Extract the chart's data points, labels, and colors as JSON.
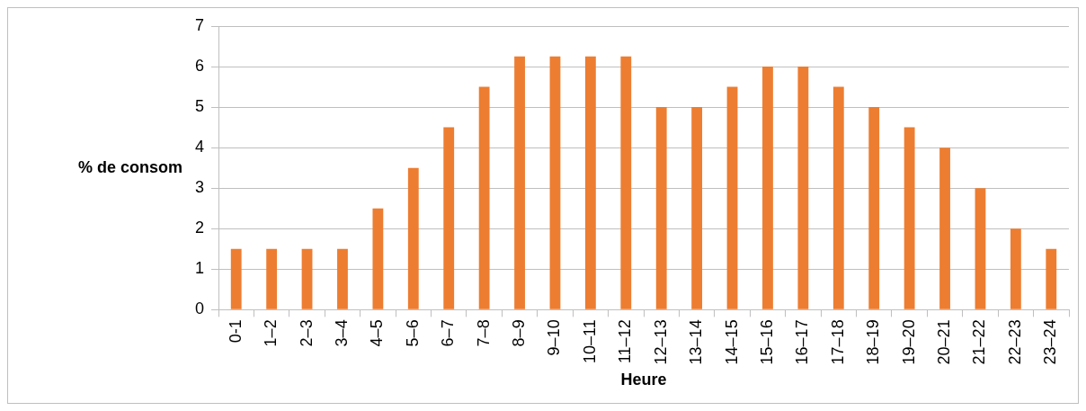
{
  "chart_data": {
    "type": "bar",
    "xlabel": "Heure",
    "ylabel": "% de consom",
    "categories": [
      "0-1",
      "1–2",
      "2–3",
      "3–4",
      "4–5",
      "5–6",
      "6–7",
      "7–8",
      "8–9",
      "9–10",
      "10–11",
      "11–12",
      "12–13",
      "13–14",
      "14–15",
      "15–16",
      "16–17",
      "17–18",
      "18–19",
      "19–20",
      "20–21",
      "21–22",
      "22–23",
      "23–24"
    ],
    "values": [
      1.5,
      1.5,
      1.5,
      1.5,
      2.5,
      3.5,
      4.5,
      5.5,
      6.25,
      6.25,
      6.25,
      6.25,
      5,
      5,
      5.5,
      6,
      6,
      5.5,
      5,
      4.5,
      4,
      3,
      2,
      1.5
    ],
    "color": "#ed7d31",
    "ylim": [
      0,
      7
    ],
    "yticks": [
      0,
      1,
      2,
      3,
      4,
      5,
      6,
      7
    ],
    "grid": "y",
    "legend": false
  }
}
